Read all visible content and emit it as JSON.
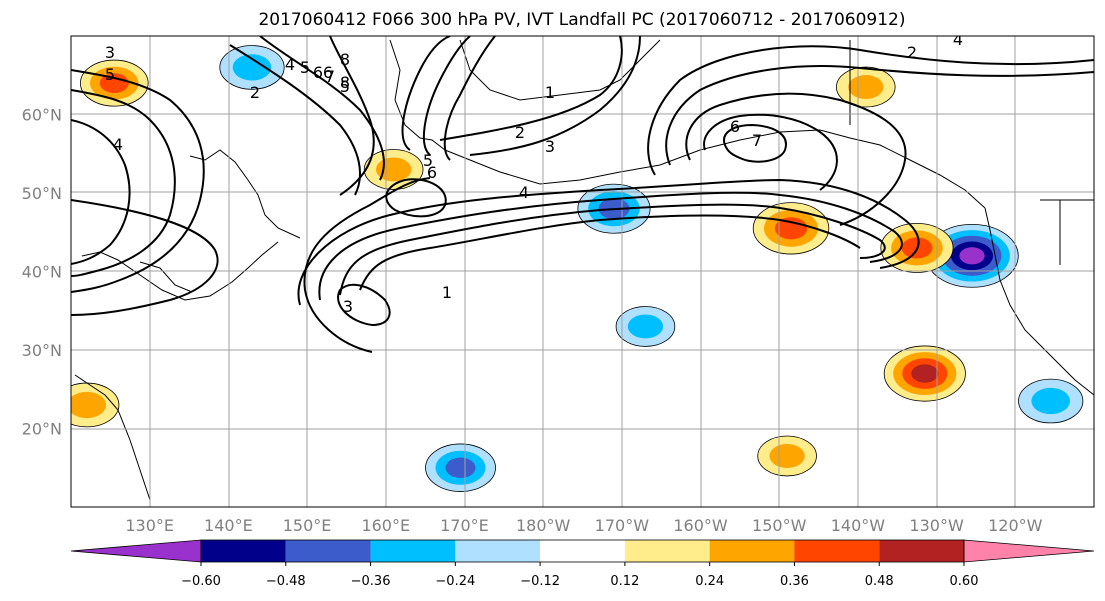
{
  "title": "2017060412 F066 300 hPa PV, IVT Landfall PC (2017060712 - 2017060912)",
  "colors": {
    "ocean": "#ffffff",
    "land_outline": "#000000",
    "grid": "#a0a0a0",
    "contour": "#000000",
    "colorbar_fills": [
      "#9932cc",
      "#00008b",
      "#3c5ccc",
      "#00bfff",
      "#b0e0ff",
      "#ffffff",
      "#ffec8b",
      "#ffa500",
      "#ff4500",
      "#b22222",
      "#ff82ab"
    ]
  },
  "lat_labels": [
    "60°N",
    "50°N",
    "40°N",
    "30°N",
    "20°N"
  ],
  "lon_labels": [
    "130°E",
    "140°E",
    "150°E",
    "160°E",
    "170°E",
    "180°W",
    "170°W",
    "160°W",
    "150°W",
    "140°W",
    "130°W",
    "120°W"
  ],
  "colorbar": {
    "tick_labels": [
      "−0.60",
      "−0.48",
      "−0.36",
      "−0.24",
      "−0.12",
      "0.12",
      "0.24",
      "0.36",
      "0.48",
      "0.60"
    ]
  },
  "contour_labels": [
    "3",
    "5",
    "4",
    "8",
    "6",
    "5",
    "1",
    "2",
    "3",
    "5",
    "6",
    "4",
    "1",
    "3",
    "2",
    "4",
    "6",
    "7",
    "2",
    "4",
    "5",
    "6",
    "7",
    "8"
  ],
  "chart_data": {
    "type": "heatmap",
    "title": "2017060412 F066 300 hPa PV, IVT Landfall PC (2017060712 - 2017060912)",
    "lat_range": [
      10,
      70
    ],
    "lon_range": [
      120,
      250
    ],
    "colorbar_levels": [
      -0.6,
      -0.48,
      -0.36,
      -0.24,
      -0.12,
      0.12,
      0.24,
      0.36,
      0.48,
      0.6
    ],
    "anomalies": [
      {
        "lon": 234.5,
        "lat": 42,
        "value": -0.6
      },
      {
        "lon": 211.5,
        "lat": 45.5,
        "value": 0.45
      },
      {
        "lon": 227.5,
        "lat": 43,
        "value": 0.42
      },
      {
        "lon": 228.5,
        "lat": 27,
        "value": 0.5
      },
      {
        "lon": 189,
        "lat": 48,
        "value": -0.42
      },
      {
        "lon": 169.5,
        "lat": 15,
        "value": -0.4
      },
      {
        "lon": 143,
        "lat": 66,
        "value": -0.35
      },
      {
        "lon": 125.5,
        "lat": 64,
        "value": 0.38
      },
      {
        "lon": 221,
        "lat": 63.5,
        "value": 0.3
      },
      {
        "lon": 161,
        "lat": 53,
        "value": 0.3
      },
      {
        "lon": 193,
        "lat": 33,
        "value": -0.3
      },
      {
        "lon": 211,
        "lat": 16.5,
        "value": 0.3
      },
      {
        "lon": 244.5,
        "lat": 23.5,
        "value": -0.35
      },
      {
        "lon": 122,
        "lat": 23,
        "value": 0.35
      }
    ],
    "pv_contours": [
      1,
      2,
      3,
      4,
      5,
      6,
      7,
      8
    ]
  }
}
